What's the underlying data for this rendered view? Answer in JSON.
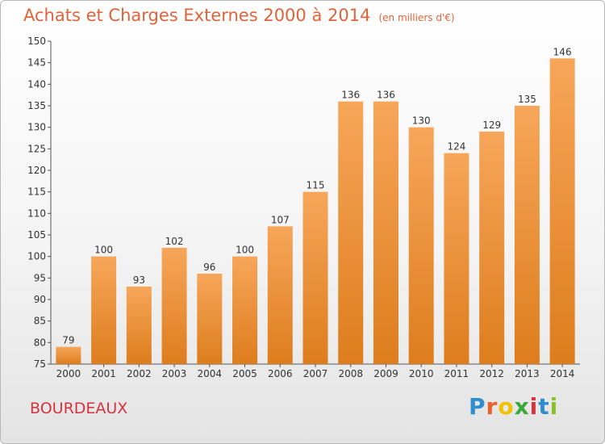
{
  "header": {
    "title": "Achats et Charges Externes 2000 à 2014",
    "subtitle": "(en milliers d'€)"
  },
  "footer": {
    "place": "BOURDEAUX",
    "logo_text": "Proxiti",
    "logo_colors": [
      "#2f8fce",
      "#e8622c",
      "#f2c200",
      "#3aa83a",
      "#d6333f",
      "#2f8fce",
      "#8bbf2c"
    ]
  },
  "colors": {
    "bar_top": "#f7a65a",
    "bar_bottom": "#dd7d1d",
    "text": "#333333",
    "title": "#e0633a"
  },
  "chart_data": {
    "type": "bar",
    "title": "Achats et Charges Externes 2000 à 2014",
    "subtitle": "(en milliers d'€)",
    "xlabel": "",
    "ylabel": "",
    "categories": [
      "2000",
      "2001",
      "2002",
      "2003",
      "2004",
      "2005",
      "2006",
      "2007",
      "2008",
      "2009",
      "2010",
      "2011",
      "2012",
      "2013",
      "2014"
    ],
    "values": [
      79,
      100,
      93,
      102,
      96,
      100,
      107,
      115,
      136,
      136,
      130,
      124,
      129,
      135,
      146
    ],
    "ylim": [
      75,
      150
    ],
    "yticks": [
      75,
      80,
      85,
      90,
      95,
      100,
      105,
      110,
      115,
      120,
      125,
      130,
      135,
      140,
      145,
      150
    ],
    "grid": false,
    "data_labels": true
  }
}
